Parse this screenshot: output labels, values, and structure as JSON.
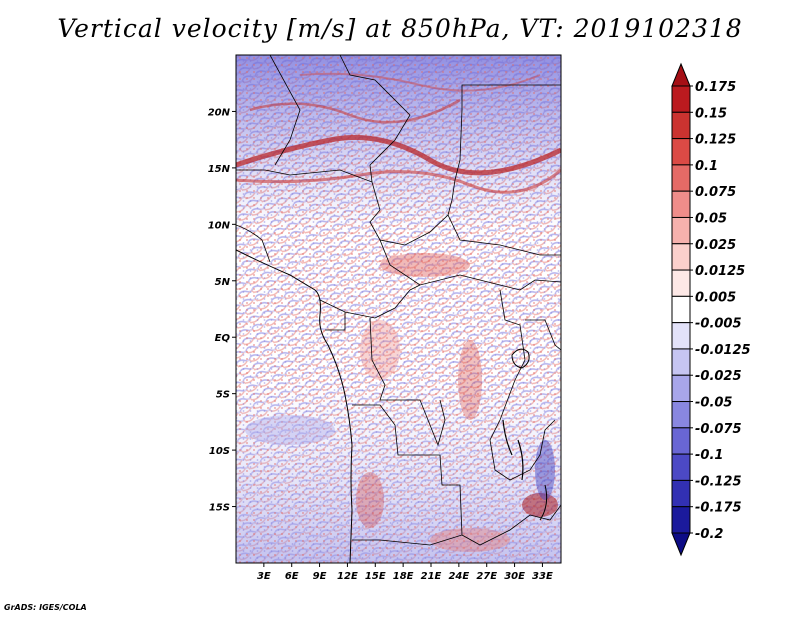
{
  "title": "Vertical velocity [m/s] at 850hPa, VT: 2019102318",
  "credit": "GrADS: IGES/COLA",
  "map": {
    "lon_range": [
      0,
      35
    ],
    "lat_range": [
      -20,
      25
    ],
    "lon_ticks": [
      {
        "value": 3,
        "label": "3E"
      },
      {
        "value": 6,
        "label": "6E"
      },
      {
        "value": 9,
        "label": "9E"
      },
      {
        "value": 12,
        "label": "12E"
      },
      {
        "value": 15,
        "label": "15E"
      },
      {
        "value": 18,
        "label": "18E"
      },
      {
        "value": 21,
        "label": "21E"
      },
      {
        "value": 24,
        "label": "24E"
      },
      {
        "value": 27,
        "label": "27E"
      },
      {
        "value": 30,
        "label": "30E"
      },
      {
        "value": 33,
        "label": "33E"
      }
    ],
    "lat_ticks": [
      {
        "value": 20,
        "label": "20N"
      },
      {
        "value": 15,
        "label": "15N"
      },
      {
        "value": 10,
        "label": "10N"
      },
      {
        "value": 5,
        "label": "5N"
      },
      {
        "value": 0,
        "label": "EQ"
      },
      {
        "value": -5,
        "label": "5S"
      },
      {
        "value": -10,
        "label": "10S"
      },
      {
        "value": -15,
        "label": "15S"
      }
    ]
  },
  "colorbar": {
    "levels": [
      {
        "label": "0.175",
        "color": "#a50f15"
      },
      {
        "label": "0.15",
        "color": "#bb1a1f"
      },
      {
        "label": "0.125",
        "color": "#cb3330"
      },
      {
        "label": "0.1",
        "color": "#db4a45"
      },
      {
        "label": "0.075",
        "color": "#e56a66"
      },
      {
        "label": "0.05",
        "color": "#ef8d8a"
      },
      {
        "label": "0.025",
        "color": "#f6b1ad"
      },
      {
        "label": "0.0125",
        "color": "#fbd0cc"
      },
      {
        "label": "0.005",
        "color": "#fde8e6"
      },
      {
        "label": "-0.005",
        "color": "#ffffff"
      },
      {
        "label": "-0.0125",
        "color": "#e3e2f9"
      },
      {
        "label": "-0.025",
        "color": "#c6c5f2"
      },
      {
        "label": "-0.05",
        "color": "#a8a6ea"
      },
      {
        "label": "-0.075",
        "color": "#8987e0"
      },
      {
        "label": "-0.1",
        "color": "#6966d4"
      },
      {
        "label": "-0.125",
        "color": "#4c49c5"
      },
      {
        "label": "-0.175",
        "color": "#3230b3"
      },
      {
        "label": "-0.2",
        "color": "#1b1a9c"
      },
      {
        "label": "",
        "color": "#0d0c86"
      }
    ]
  }
}
